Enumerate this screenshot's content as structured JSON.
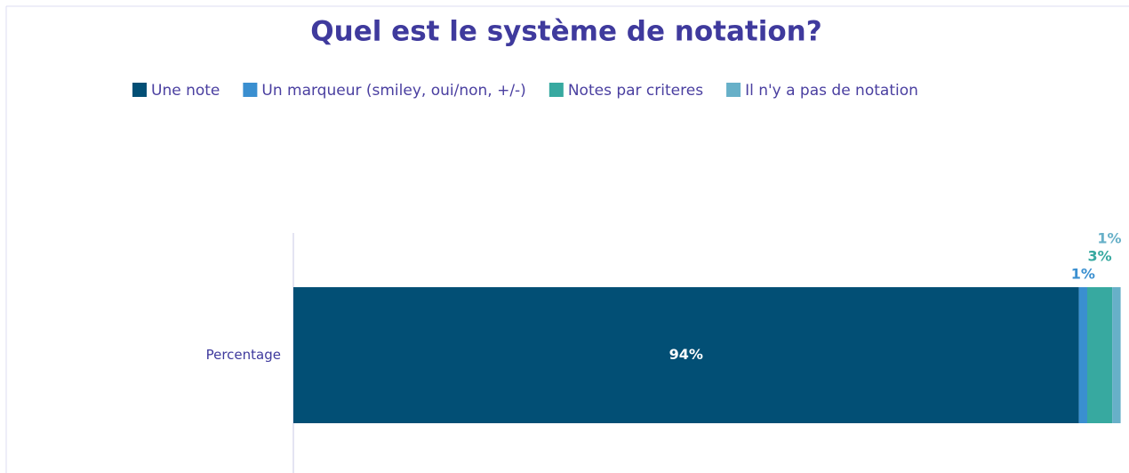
{
  "chart_data": {
    "type": "stacked_bar_horizontal",
    "title": "Quel est le système de notation?",
    "categories": [
      "Percentage"
    ],
    "series": [
      {
        "name": "Une note",
        "color": "#024f75",
        "values": [
          94
        ],
        "value_labels": [
          "94%"
        ]
      },
      {
        "name": "Un marqueur (smiley, oui/non, +/-)",
        "color": "#3a8fd0",
        "values": [
          1
        ],
        "value_labels": [
          "1%"
        ]
      },
      {
        "name": "Notes par criteres",
        "color": "#37a9a0",
        "values": [
          3
        ],
        "value_labels": [
          "3%"
        ]
      },
      {
        "name": "Il n'y a pas de notation",
        "color": "#67b0c8",
        "values": [
          1
        ],
        "value_labels": [
          "1%"
        ]
      }
    ],
    "xlim": [
      0,
      100
    ],
    "legend": "top"
  }
}
